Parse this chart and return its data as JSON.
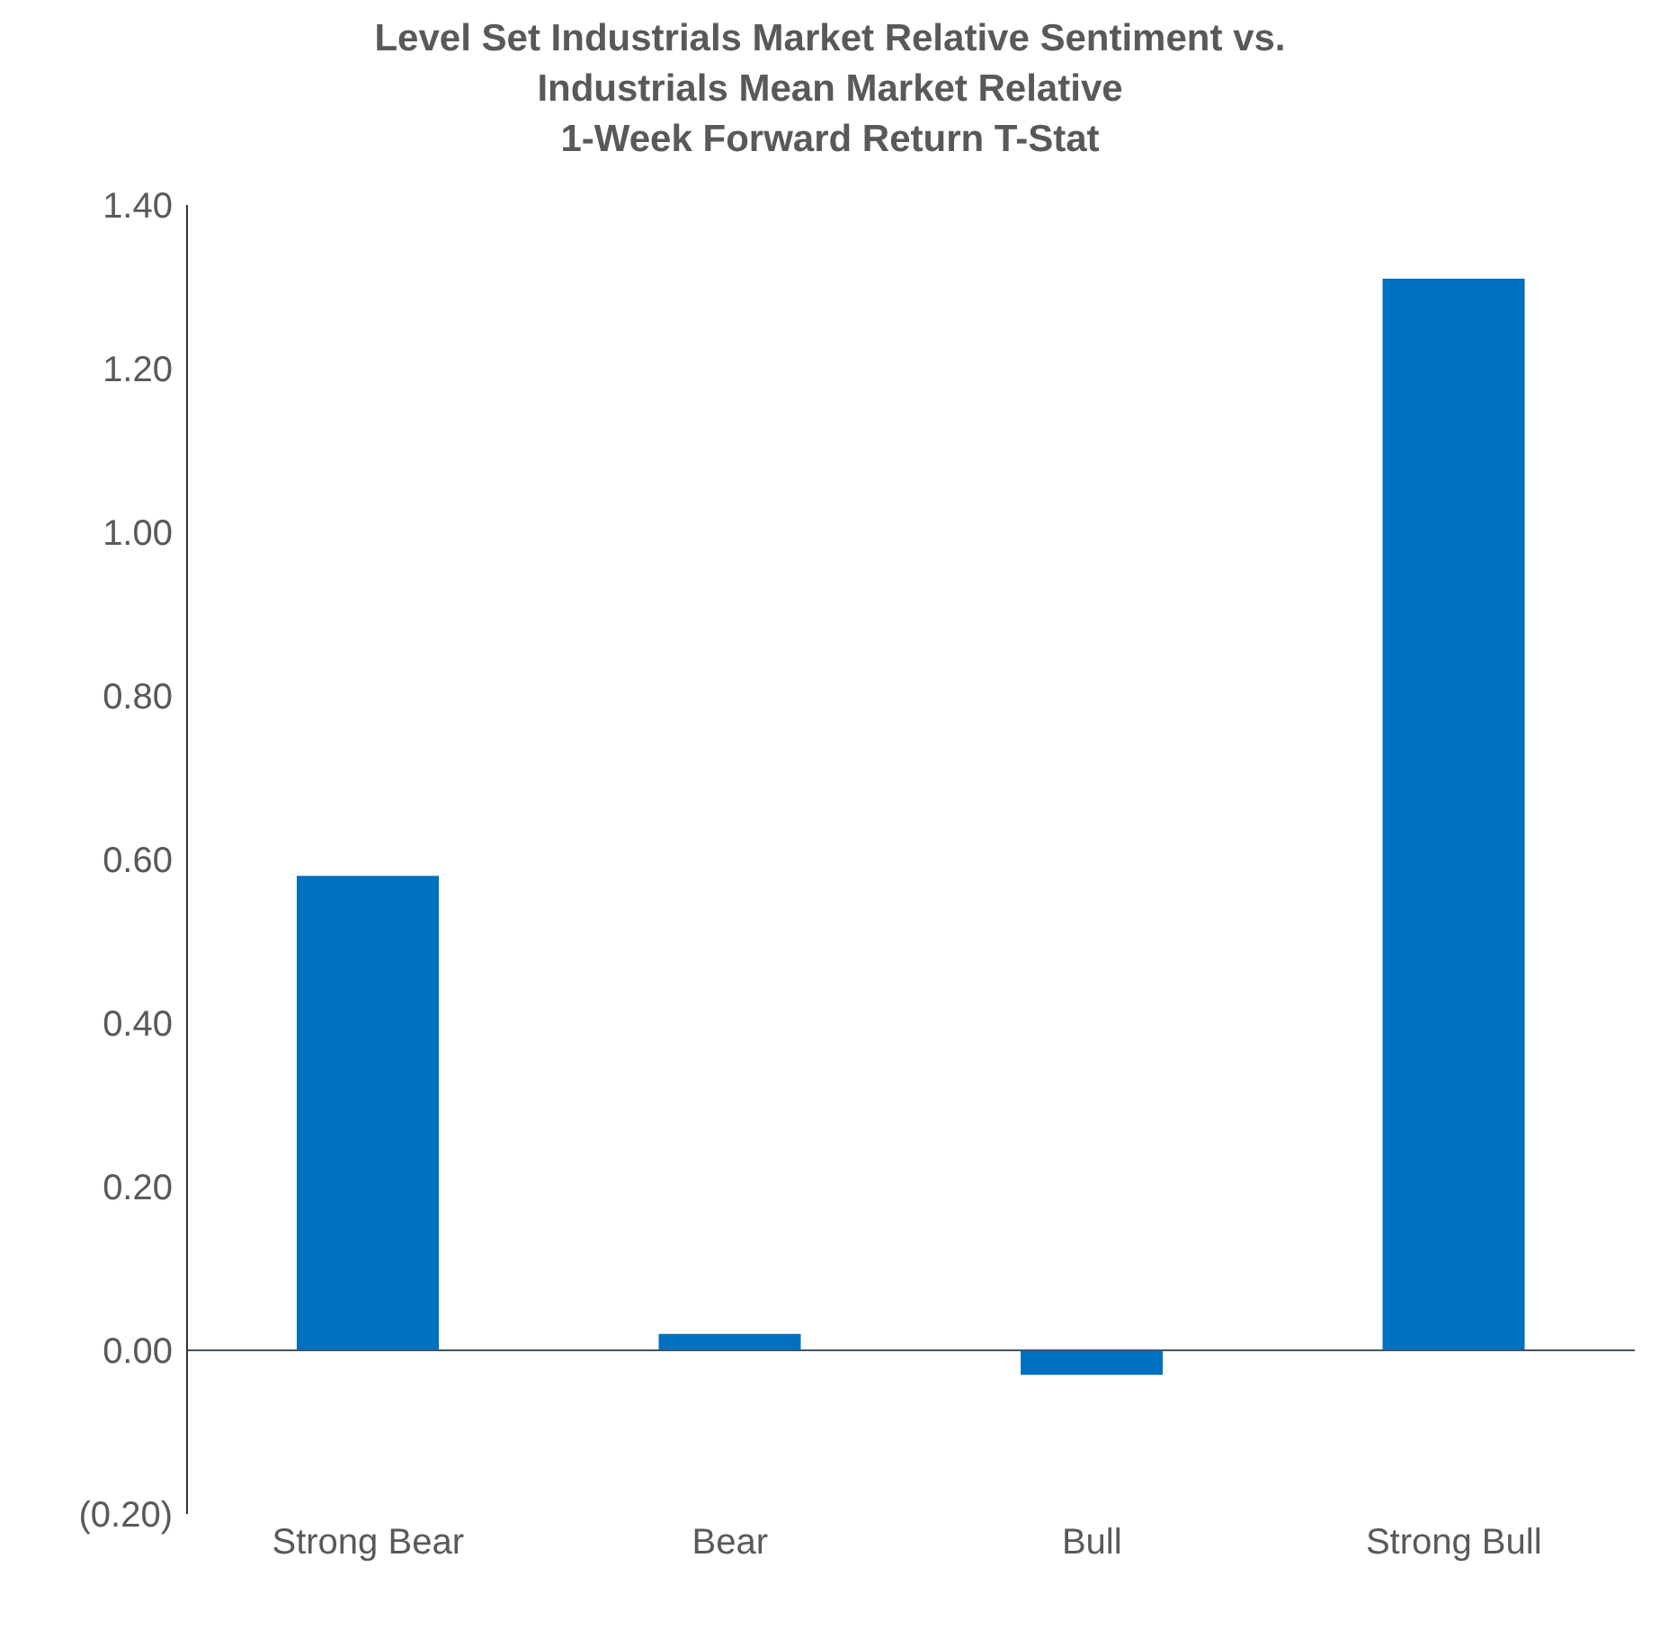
{
  "chart_data": {
    "type": "bar",
    "title": "Level Set Industrials Market Relative Sentiment vs.\nIndustrials Mean Market Relative\n1-Week Forward Return T-Stat",
    "categories": [
      "Strong Bear",
      "Bear",
      "Bull",
      "Strong Bull"
    ],
    "values": [
      0.58,
      0.02,
      -0.03,
      1.31
    ],
    "color": "#0070c0",
    "ylim": [
      -0.2,
      1.4
    ],
    "yticks": [
      {
        "value": -0.2,
        "label": "(0.20)"
      },
      {
        "value": 0,
        "label": "0.00"
      },
      {
        "value": 0.2,
        "label": "0.20"
      },
      {
        "value": 0.4,
        "label": "0.40"
      },
      {
        "value": 0.6,
        "label": "0.60"
      },
      {
        "value": 0.8,
        "label": "0.80"
      },
      {
        "value": 1,
        "label": "1.00"
      },
      {
        "value": 1.2,
        "label": "1.20"
      },
      {
        "value": 1.4,
        "label": "1.40"
      }
    ],
    "ref_lines": [
      {
        "axis": "y",
        "value": 0,
        "color": "#44546a"
      }
    ],
    "legend": false
  }
}
